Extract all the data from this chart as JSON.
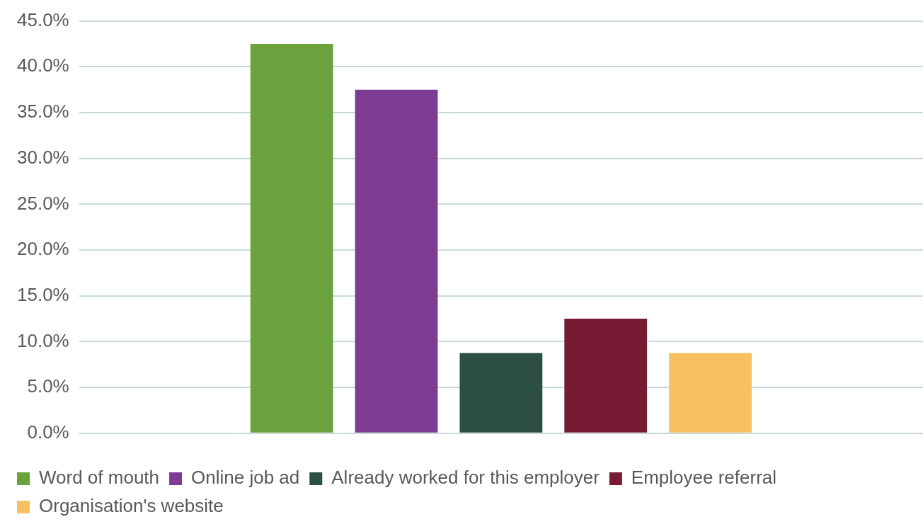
{
  "chart_data": {
    "type": "bar",
    "categories": [
      null
    ],
    "series": [
      {
        "name": "Word of mouth",
        "color": "#6aa23e",
        "values": [
          42.5
        ]
      },
      {
        "name": "Online job ad",
        "color": "#7e3b94",
        "values": [
          37.5
        ]
      },
      {
        "name": "Already worked for this employer",
        "color": "#2c4f45",
        "values": [
          8.75
        ]
      },
      {
        "name": "Employee referral",
        "color": "#771b34",
        "values": [
          12.5
        ]
      },
      {
        "name": "Organisation's website",
        "color": "#f8c060",
        "values": [
          8.75
        ]
      }
    ],
    "ylim": [
      0,
      45
    ],
    "yticks": [
      {
        "value": 0,
        "label": "0.0%"
      },
      {
        "value": 5,
        "label": "5.0%"
      },
      {
        "value": 10,
        "label": "10.0%"
      },
      {
        "value": 15,
        "label": "15.0%"
      },
      {
        "value": 20,
        "label": "20.0%"
      },
      {
        "value": 25,
        "label": "25.0%"
      },
      {
        "value": 30,
        "label": "30.0%"
      },
      {
        "value": 35,
        "label": "35.0%"
      },
      {
        "value": 40,
        "label": "40.0%"
      },
      {
        "value": 45,
        "label": "45.0%"
      }
    ],
    "grid": "y",
    "legend": "bottom"
  }
}
